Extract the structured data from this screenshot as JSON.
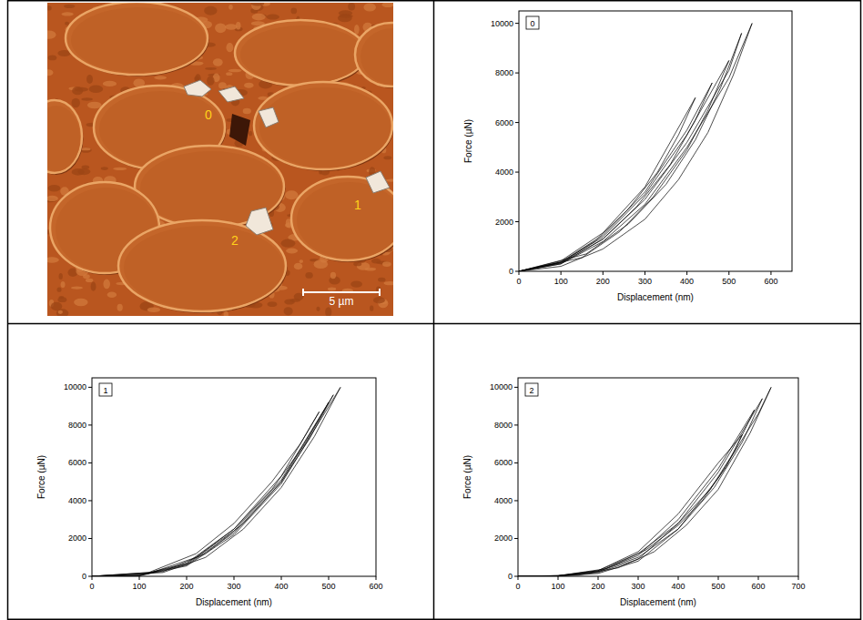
{
  "image": {
    "labels": [
      "0",
      "1",
      "2"
    ],
    "scale_bar": "5 µm"
  },
  "chart_data": [
    {
      "type": "line",
      "title": "0",
      "x_label": "Displacement (nm)",
      "y_label": "Force (µN)",
      "xlim": [
        0,
        650
      ],
      "xticks": [
        0,
        100,
        200,
        300,
        400,
        500,
        600
      ],
      "ylim": [
        0,
        10500
      ],
      "yticks": [
        0,
        2000,
        4000,
        6000,
        8000,
        10000
      ],
      "grid": false,
      "series": [
        {
          "color": "#000000",
          "x": [
            0,
            100,
            200,
            300,
            420,
            380,
            330,
            260,
            180,
            100,
            0
          ],
          "values": [
            0,
            420,
            1550,
            3400,
            7000,
            5500,
            4000,
            2500,
            1200,
            350,
            0
          ]
        },
        {
          "color": "#000000",
          "x": [
            0,
            100,
            200,
            300,
            400,
            460,
            420,
            360,
            280,
            200,
            100,
            0
          ],
          "values": [
            0,
            380,
            1450,
            3200,
            5700,
            7600,
            6100,
            4300,
            2600,
            1300,
            300,
            0
          ]
        },
        {
          "color": "#000000",
          "x": [
            0,
            100,
            200,
            300,
            400,
            500,
            450,
            400,
            320,
            240,
            150,
            0
          ],
          "values": [
            0,
            360,
            1380,
            3100,
            5500,
            8500,
            6500,
            4900,
            3000,
            1600,
            550,
            0
          ]
        },
        {
          "color": "#000000",
          "x": [
            0,
            100,
            200,
            300,
            400,
            500,
            530,
            480,
            420,
            350,
            260,
            160,
            0
          ],
          "values": [
            0,
            330,
            1300,
            2900,
            5200,
            8100,
            9600,
            7400,
            5300,
            3500,
            1900,
            700,
            0
          ]
        },
        {
          "color": "#000000",
          "x": [
            0,
            100,
            200,
            300,
            400,
            500,
            555,
            510,
            450,
            380,
            300,
            200,
            100,
            0
          ],
          "values": [
            0,
            300,
            1200,
            2700,
            5000,
            7800,
            10000,
            7900,
            5600,
            3700,
            2100,
            900,
            200,
            0
          ]
        }
      ]
    },
    {
      "type": "line",
      "title": "1",
      "x_label": "Displacement (nm)",
      "y_label": "Force (µN)",
      "xlim": [
        0,
        600
      ],
      "xticks": [
        0,
        100,
        200,
        300,
        400,
        500,
        600
      ],
      "ylim": [
        0,
        10500
      ],
      "yticks": [
        0,
        2000,
        4000,
        6000,
        8000,
        10000
      ],
      "grid": false,
      "series": [
        {
          "color": "#000000",
          "x": [
            0,
            100,
            200,
            300,
            400,
            480,
            440,
            380,
            300,
            220,
            120,
            0
          ],
          "values": [
            0,
            60,
            700,
            2500,
            5300,
            8700,
            7000,
            5000,
            2800,
            1200,
            200,
            0
          ]
        },
        {
          "color": "#000000",
          "x": [
            0,
            100,
            200,
            300,
            400,
            500,
            450,
            380,
            300,
            220,
            120,
            0
          ],
          "values": [
            0,
            50,
            650,
            2400,
            5100,
            9200,
            7000,
            4600,
            2500,
            1000,
            150,
            0
          ]
        },
        {
          "color": "#000000",
          "x": [
            0,
            100,
            200,
            300,
            400,
            510,
            460,
            400,
            320,
            240,
            150,
            0
          ],
          "values": [
            0,
            40,
            600,
            2300,
            5000,
            9600,
            7300,
            5000,
            2800,
            1200,
            250,
            0
          ]
        },
        {
          "color": "#000000",
          "x": [
            0,
            100,
            200,
            300,
            400,
            525,
            470,
            400,
            320,
            240,
            150,
            0
          ],
          "values": [
            0,
            30,
            550,
            2200,
            4900,
            10000,
            7400,
            4700,
            2500,
            1000,
            200,
            0
          ]
        }
      ]
    },
    {
      "type": "line",
      "title": "2",
      "x_label": "Displacement (nm)",
      "y_label": "Force (µN)",
      "xlim": [
        0,
        700
      ],
      "xticks": [
        0,
        100,
        200,
        300,
        400,
        500,
        600,
        700
      ],
      "ylim": [
        0,
        10500
      ],
      "yticks": [
        0,
        2000,
        4000,
        6000,
        8000,
        10000
      ],
      "grid": false,
      "series": [
        {
          "color": "#000000",
          "x": [
            0,
            100,
            200,
            300,
            400,
            500,
            560,
            520,
            460,
            400,
            320,
            220,
            100,
            0
          ],
          "values": [
            0,
            30,
            300,
            1300,
            3300,
            6000,
            7500,
            5800,
            4000,
            2700,
            1400,
            400,
            30,
            0
          ]
        },
        {
          "color": "#000000",
          "x": [
            0,
            100,
            200,
            300,
            400,
            500,
            590,
            540,
            480,
            400,
            300,
            200,
            100,
            0
          ],
          "values": [
            0,
            20,
            250,
            1100,
            3000,
            5700,
            8800,
            6600,
            4600,
            2800,
            1200,
            300,
            20,
            0
          ]
        },
        {
          "color": "#000000",
          "x": [
            0,
            100,
            200,
            300,
            400,
            500,
            610,
            560,
            490,
            400,
            300,
            200,
            100,
            0
          ],
          "values": [
            0,
            20,
            200,
            900,
            2800,
            5500,
            9400,
            7100,
            4700,
            2500,
            1000,
            250,
            20,
            0
          ]
        },
        {
          "color": "#000000",
          "x": [
            0,
            100,
            200,
            300,
            400,
            500,
            600,
            632,
            580,
            500,
            420,
            340,
            250,
            150,
            0
          ],
          "values": [
            0,
            10,
            150,
            800,
            2500,
            5200,
            8600,
            10000,
            7600,
            4600,
            2700,
            1300,
            450,
            60,
            0
          ]
        }
      ]
    }
  ]
}
